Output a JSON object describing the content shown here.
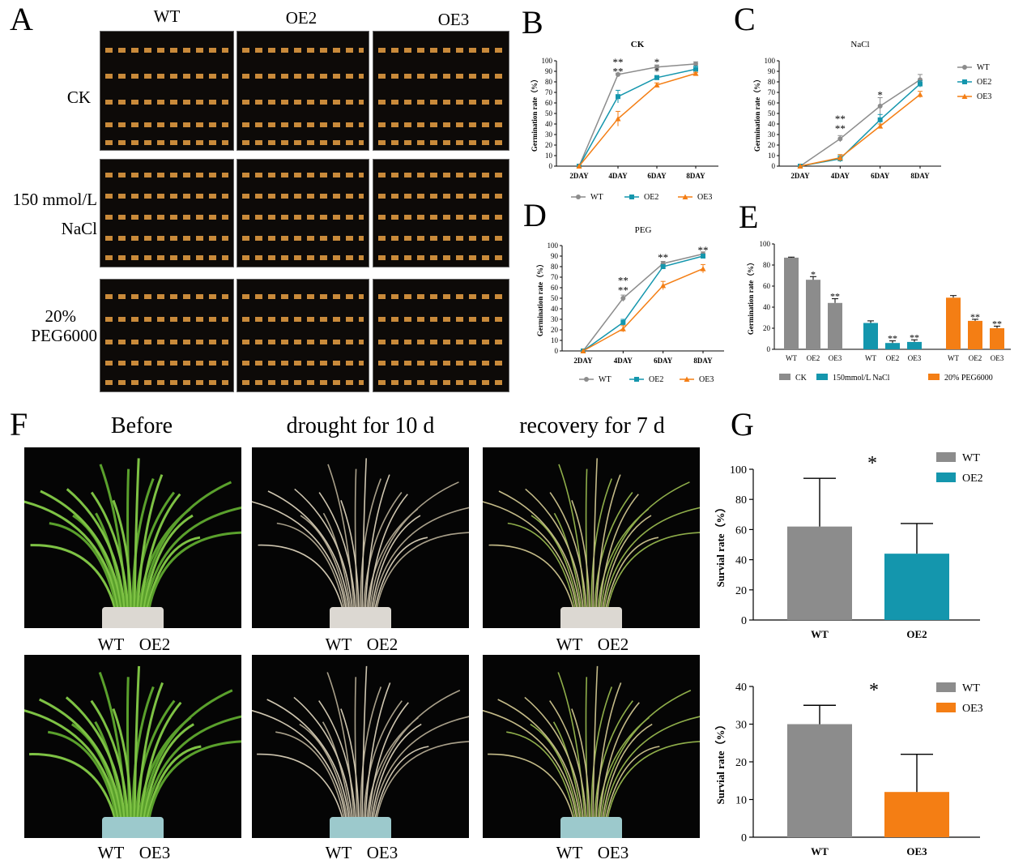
{
  "colors": {
    "wt": "#8c8c8c",
    "oe2": "#1496ad",
    "oe3": "#f47e14",
    "photo_bg": "#0d0a08"
  },
  "panel_a": {
    "letter": "A",
    "columns": [
      "WT",
      "OE2",
      "OE3"
    ],
    "rows": {
      "ck": "CK",
      "nacl_line1": "150 mmol/L",
      "nacl_line2": "NaCl",
      "peg_line1": "20%",
      "peg_line2": "PEG6000"
    }
  },
  "panel_f": {
    "letter": "F",
    "conditions": [
      "Before",
      "drought for 10 d",
      "recovery for 7 d"
    ],
    "captions_top": [
      [
        "WT",
        "OE2"
      ],
      [
        "WT",
        "OE2"
      ],
      [
        "WT",
        "OE2"
      ]
    ],
    "captions_bottom": [
      [
        "WT",
        "OE3"
      ],
      [
        "WT",
        "OE3"
      ],
      [
        "WT",
        "OE3"
      ]
    ]
  },
  "legend_bc": [
    "WT",
    "OE2",
    "OE3"
  ],
  "legend_e": [
    "CK",
    "150mmol/L NaCl",
    "20% PEG6000"
  ],
  "chart_data": [
    {
      "id": "B",
      "type": "line",
      "title": "CK",
      "xlabel": "",
      "ylabel": "Germination rate（%）",
      "categories": [
        "2DAY",
        "4DAY",
        "6DAY",
        "8DAY"
      ],
      "ylim": [
        0,
        100
      ],
      "yticks": [
        0,
        10,
        20,
        30,
        40,
        50,
        60,
        70,
        80,
        90,
        100
      ],
      "series": [
        {
          "name": "WT",
          "values": [
            0,
            87,
            94,
            97
          ],
          "errors": [
            0,
            1,
            2,
            2
          ]
        },
        {
          "name": "OE2",
          "values": [
            0,
            66,
            84,
            92
          ],
          "errors": [
            0,
            6,
            2,
            3
          ]
        },
        {
          "name": "OE3",
          "values": [
            0,
            45,
            77,
            88
          ],
          "errors": [
            0,
            7,
            2,
            1
          ]
        }
      ],
      "annotations": [
        {
          "x": "4DAY",
          "text": "**",
          "value": 100
        },
        {
          "x": "4DAY",
          "text": "**",
          "value": 91
        },
        {
          "x": "6DAY",
          "text": "*",
          "value": 100
        },
        {
          "x": "6DAY",
          "text": "*",
          "value": 91
        }
      ]
    },
    {
      "id": "C",
      "type": "line",
      "title": "NaCl",
      "xlabel": "",
      "ylabel": "Germination rate（%）",
      "categories": [
        "2DAY",
        "4DAY",
        "6DAY",
        "8DAY"
      ],
      "ylim": [
        0,
        100
      ],
      "yticks": [
        0,
        10,
        20,
        30,
        40,
        50,
        60,
        70,
        80,
        90,
        100
      ],
      "series": [
        {
          "name": "WT",
          "values": [
            0,
            26,
            57,
            82
          ],
          "errors": [
            0,
            3,
            8,
            5
          ]
        },
        {
          "name": "OE2",
          "values": [
            0,
            7,
            44,
            78
          ],
          "errors": [
            0,
            3,
            5,
            3
          ]
        },
        {
          "name": "OE3",
          "values": [
            0,
            8,
            38,
            68
          ],
          "errors": [
            0,
            3,
            2,
            3
          ]
        }
      ],
      "annotations": [
        {
          "x": "4DAY",
          "text": "**",
          "value": 46
        },
        {
          "x": "4DAY",
          "text": "**",
          "value": 37
        },
        {
          "x": "6DAY",
          "text": "*",
          "value": 69
        }
      ]
    },
    {
      "id": "D",
      "type": "line",
      "title": "PEG",
      "xlabel": "",
      "ylabel": "Germination rate（%）",
      "categories": [
        "2DAY",
        "4DAY",
        "6DAY",
        "8DAY"
      ],
      "ylim": [
        0,
        100
      ],
      "yticks": [
        0,
        10,
        20,
        30,
        40,
        50,
        60,
        70,
        80,
        90,
        100
      ],
      "series": [
        {
          "name": "WT",
          "values": [
            0,
            50,
            83,
            92
          ],
          "errors": [
            0,
            3,
            2,
            2
          ]
        },
        {
          "name": "OE2",
          "values": [
            0,
            27,
            80,
            90
          ],
          "errors": [
            0,
            3,
            2,
            2
          ]
        },
        {
          "name": "OE3",
          "values": [
            0,
            21,
            62,
            78
          ],
          "errors": [
            0,
            3,
            4,
            4
          ]
        }
      ],
      "annotations": [
        {
          "x": "4DAY",
          "text": "**",
          "value": 68
        },
        {
          "x": "4DAY",
          "text": "**",
          "value": 59
        },
        {
          "x": "6DAY",
          "text": "**",
          "value": 90
        },
        {
          "x": "8DAY",
          "text": "**",
          "value": 97
        }
      ]
    },
    {
      "id": "E",
      "type": "bar",
      "title": "",
      "xlabel": "",
      "ylabel": "Germination rate（%）",
      "ylim": [
        0,
        100
      ],
      "yticks": [
        0,
        20,
        40,
        60,
        80,
        100
      ],
      "groups": [
        {
          "name": "CK",
          "labels": [
            "WT",
            "OE2",
            "OE3"
          ],
          "values": [
            87,
            66,
            44
          ],
          "errors": [
            0.5,
            3,
            4
          ],
          "stars": [
            "",
            "*",
            "**"
          ]
        },
        {
          "name": "150mmol/L NaCl",
          "labels": [
            "WT",
            "OE2",
            "OE3"
          ],
          "values": [
            25,
            6,
            7
          ],
          "errors": [
            2,
            2,
            2
          ],
          "stars": [
            "",
            "**",
            "**"
          ]
        },
        {
          "name": "20% PEG6000",
          "labels": [
            "WT",
            "OE2",
            "OE3"
          ],
          "values": [
            49,
            27,
            20
          ],
          "errors": [
            2,
            1.5,
            2
          ],
          "stars": [
            "",
            "**",
            "**"
          ]
        }
      ]
    },
    {
      "id": "G1",
      "type": "bar",
      "title": "",
      "xlabel": "",
      "ylabel": "Survial rate（%）",
      "categories": [
        "WT",
        "OE2"
      ],
      "values": [
        62,
        44
      ],
      "errors": [
        32,
        20
      ],
      "ylim": [
        0,
        100
      ],
      "yticks": [
        0,
        20,
        40,
        60,
        80,
        100
      ],
      "legend": [
        "WT",
        "OE2"
      ],
      "annotation": "*"
    },
    {
      "id": "G2",
      "type": "bar",
      "title": "",
      "xlabel": "",
      "ylabel": "Survial rate（%）",
      "categories": [
        "WT",
        "OE3"
      ],
      "values": [
        30,
        12
      ],
      "errors": [
        5,
        10
      ],
      "ylim": [
        0,
        40
      ],
      "yticks": [
        0,
        10,
        20,
        30,
        40
      ],
      "legend": [
        "WT",
        "OE3"
      ],
      "annotation": "*"
    }
  ]
}
